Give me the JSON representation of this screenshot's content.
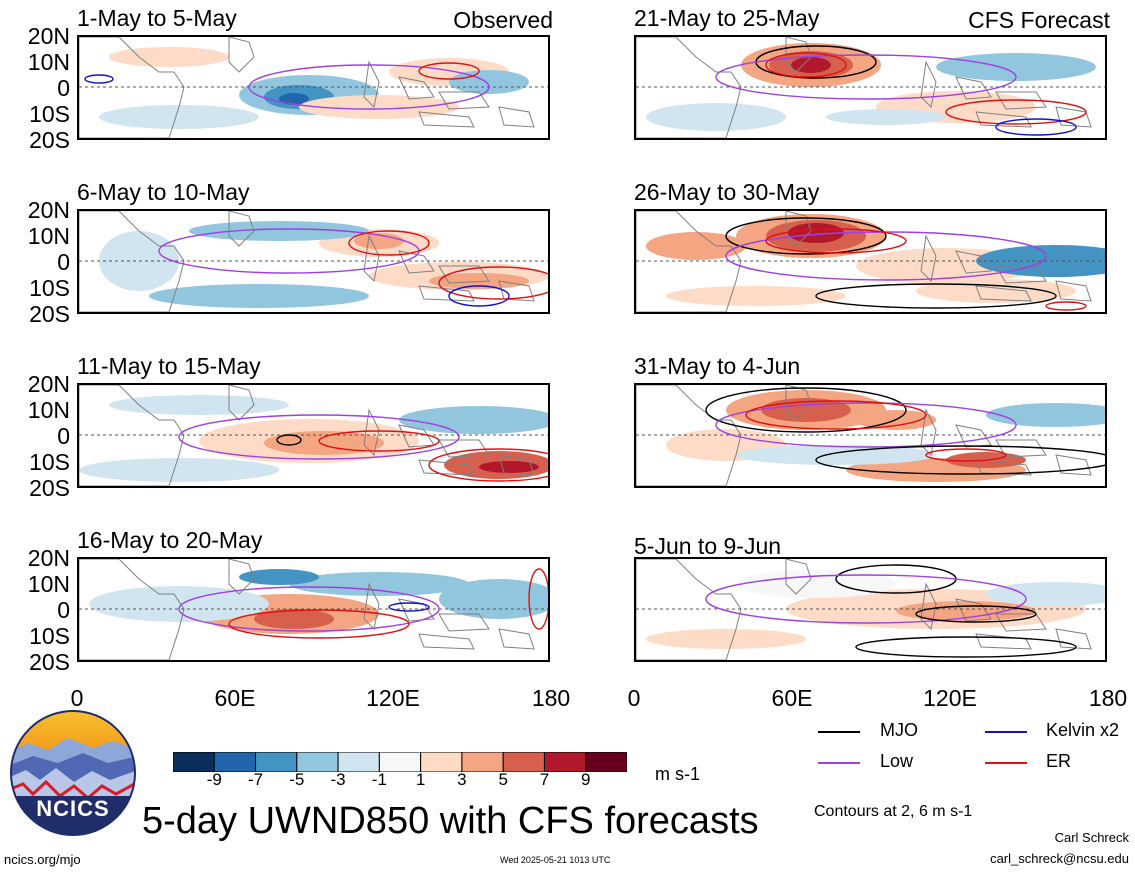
{
  "observed_label": "Observed",
  "forecast_label": "CFS Forecast",
  "panels_left": [
    {
      "title": "1-May to 5-May"
    },
    {
      "title": "6-May to 10-May"
    },
    {
      "title": "11-May to 15-May"
    },
    {
      "title": "16-May to 20-May"
    }
  ],
  "panels_right": [
    {
      "title": "21-May to 25-May"
    },
    {
      "title": "26-May to 30-May"
    },
    {
      "title": "31-May to 4-Jun"
    },
    {
      "title": "5-Jun to 9-Jun"
    }
  ],
  "lat_labels": [
    "20N",
    "10N",
    "0",
    "10S",
    "20S"
  ],
  "lon_labels": [
    "0",
    "60E",
    "120E",
    "180"
  ],
  "colorbar": {
    "colors": [
      "#0a2f5a",
      "#2166ac",
      "#4393c3",
      "#92c5de",
      "#d1e5f0",
      "#f7f7f7",
      "#fddbc7",
      "#f4a582",
      "#d6604d",
      "#b2182b",
      "#67001f"
    ],
    "labels": [
      "-9",
      "-7",
      "-5",
      "-3",
      "-1",
      "1",
      "3",
      "5",
      "7",
      "9"
    ],
    "units": "m s-1"
  },
  "legend": {
    "mjo": "MJO",
    "kelvin": "Kelvin x2",
    "low": "Low",
    "er": "ER",
    "colors": {
      "mjo": "#000000",
      "kelvin": "#1010d0",
      "low": "#a040e0",
      "er": "#e01010"
    },
    "contours_note": "Contours at 2, 6 m s-1"
  },
  "main_title": "5-day UWND850 with CFS forecasts",
  "logo_text": "NCICS",
  "website": "ncics.org/mjo",
  "timestamp": "Wed 2025-05-21 1013 UTC",
  "author": "Carl Schreck",
  "email": "carl_schreck@ncsu.edu"
}
